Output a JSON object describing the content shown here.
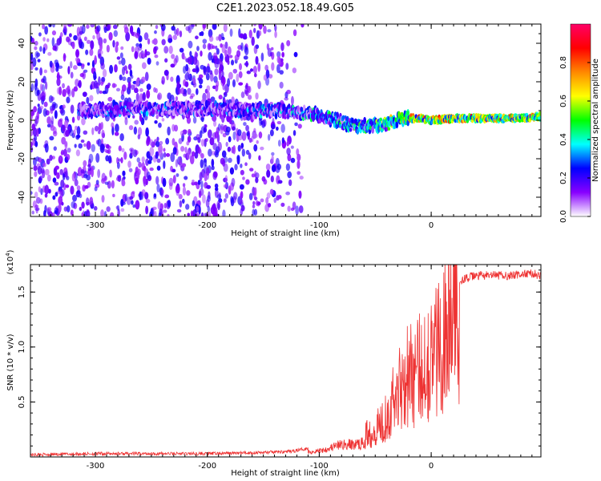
{
  "figure": {
    "title": "C2E1.2023.052.18.49.G05"
  },
  "colors": {
    "snr_line": "#ee3333",
    "axis": "#000000",
    "background": "#ffffff"
  },
  "chart_data": [
    {
      "type": "heatmap",
      "xlabel": "Height of straight line (km)",
      "ylabel": "Frequency (Hz)",
      "xlim": [
        -358,
        98
      ],
      "ylim": [
        -50,
        50
      ],
      "x_ticks": [
        -300,
        -200,
        -100,
        0
      ],
      "x_tick_labels": [
        "-300",
        "-200",
        "-100",
        "0"
      ],
      "y_ticks": [
        -40,
        -20,
        0,
        20,
        40
      ],
      "y_tick_labels": [
        "-40",
        "-20",
        "0",
        "20",
        "40"
      ],
      "colorbar": {
        "label": "Normalized spectral amplitude",
        "range": [
          0,
          1
        ],
        "ticks": [
          0.0,
          0.2,
          0.4,
          0.6,
          0.8
        ],
        "tick_labels": [
          "0.0",
          "0.2",
          "0.4",
          "0.6",
          "0.8"
        ],
        "colormap": [
          "#ffffff",
          "#8800ff",
          "#0000ff",
          "#00ffff",
          "#00ff00",
          "#ffff00",
          "#ff8800",
          "#ff0000",
          "#ff0066"
        ]
      },
      "ridge": [
        {
          "x": -315,
          "freq": 5,
          "amp": 0.3
        },
        {
          "x": -280,
          "freq": 6,
          "amp": 0.35
        },
        {
          "x": -240,
          "freq": 6,
          "amp": 0.35
        },
        {
          "x": -200,
          "freq": 6,
          "amp": 0.3
        },
        {
          "x": -160,
          "freq": 5,
          "amp": 0.35
        },
        {
          "x": -130,
          "freq": 5,
          "amp": 0.4
        },
        {
          "x": -110,
          "freq": 4,
          "amp": 0.45
        },
        {
          "x": -90,
          "freq": 1,
          "amp": 0.45
        },
        {
          "x": -70,
          "freq": -3,
          "amp": 0.5
        },
        {
          "x": -55,
          "freq": -3,
          "amp": 0.55
        },
        {
          "x": -40,
          "freq": -2,
          "amp": 0.6
        },
        {
          "x": -25,
          "freq": 1,
          "amp": 0.7
        },
        {
          "x": -10,
          "freq": 1,
          "amp": 0.8
        },
        {
          "x": 0,
          "freq": 0,
          "amp": 0.85
        },
        {
          "x": 20,
          "freq": 1,
          "amp": 0.8
        },
        {
          "x": 50,
          "freq": 1,
          "amp": 0.85
        },
        {
          "x": 80,
          "freq": 1,
          "amp": 0.85
        },
        {
          "x": 98,
          "freq": 2,
          "amp": 0.7
        }
      ],
      "noise_extent_x": [
        -358,
        -130
      ]
    },
    {
      "type": "line",
      "xlabel": "Height of straight line (km)",
      "ylabel": "SNR (10 * v/v)",
      "y_multiplier": "(x10",
      "y_multiplier_exp": "4",
      "y_multiplier_close": ")",
      "xlim": [
        -358,
        98
      ],
      "ylim": [
        0,
        1.75
      ],
      "x_ticks": [
        -300,
        -200,
        -100,
        0
      ],
      "x_tick_labels": [
        "-300",
        "-200",
        "-100",
        "0"
      ],
      "y_ticks": [
        0.5,
        1.0,
        1.5
      ],
      "y_tick_labels": [
        "0.5",
        "1.0",
        "1.5"
      ],
      "series": [
        {
          "color": "#ee3333",
          "envelope": {
            "x": [
              -358,
              -300,
              -250,
              -200,
              -150,
              -125,
              -110,
              -100,
              -90,
              -80,
              -70,
              -60,
              -50,
              -40,
              -30,
              -25,
              -20,
              -15,
              -10,
              -5,
              0,
              5,
              10,
              15,
              20,
              25,
              30,
              40,
              50,
              60,
              70,
              80,
              90,
              98
            ],
            "y": [
              0.02,
              0.03,
              0.03,
              0.03,
              0.04,
              0.05,
              0.08,
              0.1,
              0.15,
              0.2,
              0.2,
              0.22,
              0.3,
              0.45,
              0.7,
              0.85,
              0.9,
              0.85,
              0.95,
              1.05,
              1.05,
              1.15,
              1.3,
              1.45,
              1.55,
              1.6,
              1.62,
              1.65,
              1.65,
              1.65,
              1.65,
              1.66,
              1.67,
              1.65
            ]
          }
        }
      ]
    }
  ]
}
